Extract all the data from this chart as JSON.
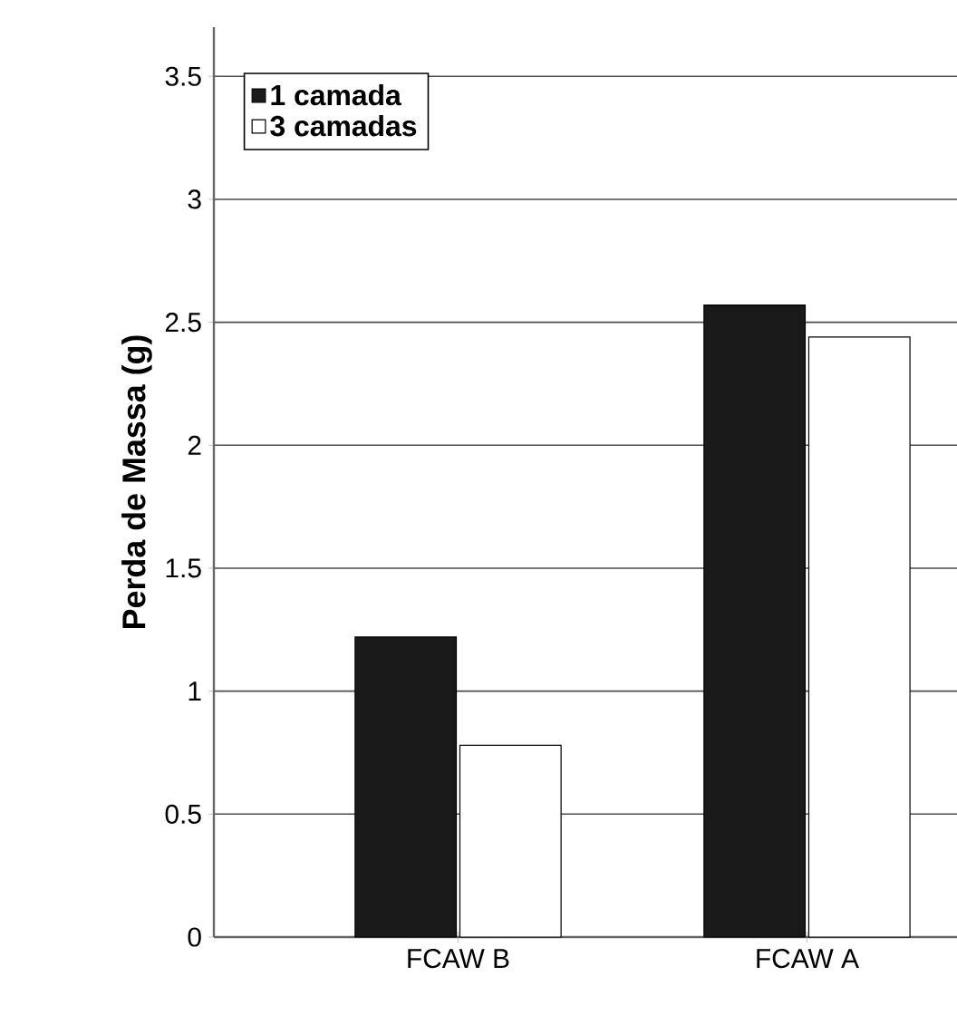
{
  "chart_data": {
    "type": "bar",
    "ylabel": "Perda de Massa (g)",
    "categories": [
      "FCAW B",
      "FCAW A"
    ],
    "series": [
      {
        "name": "1 camada",
        "color": "#1a1a1a",
        "values": [
          1.22,
          2.57
        ]
      },
      {
        "name": "3 camadas",
        "color": "#ffffff",
        "values": [
          0.78,
          2.44
        ]
      }
    ],
    "ylim": [
      0,
      3.7
    ],
    "yticks": [
      0,
      0.5,
      1,
      1.5,
      2,
      2.5,
      3,
      3.5
    ],
    "grid": "y",
    "legend": "top left"
  }
}
